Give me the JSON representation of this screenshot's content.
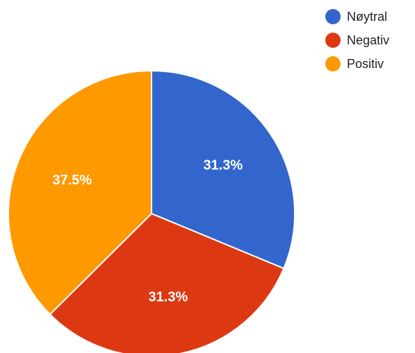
{
  "chart_data": {
    "type": "pie",
    "categories": [
      "Nøytral",
      "Negativ",
      "Positiv"
    ],
    "values": [
      31.3,
      31.3,
      37.5
    ],
    "data_labels": [
      "31.3%",
      "31.3%",
      "37.5%"
    ],
    "colors": [
      "#3366cc",
      "#dc3912",
      "#ff9900"
    ],
    "legend_placement": "top-right",
    "start_angle": "12 o'clock, clockwise"
  }
}
